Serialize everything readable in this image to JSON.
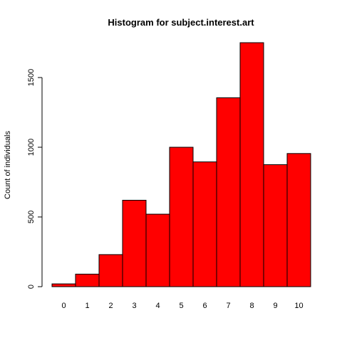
{
  "chart_data": {
    "type": "bar",
    "title": "Histogram for subject.interest.art",
    "xlabel": "",
    "ylabel": "Count of individuals",
    "categories": [
      "0",
      "1",
      "2",
      "3",
      "4",
      "5",
      "6",
      "7",
      "8",
      "9",
      "10"
    ],
    "values": [
      20,
      90,
      230,
      620,
      520,
      1000,
      895,
      1355,
      1750,
      875,
      955
    ],
    "ylim": [
      0,
      1750
    ],
    "y_ticks": [
      "0",
      "500",
      "1000",
      "1500"
    ],
    "grid": false,
    "bar_fill": "#ff0000",
    "bar_stroke": "#000000"
  }
}
